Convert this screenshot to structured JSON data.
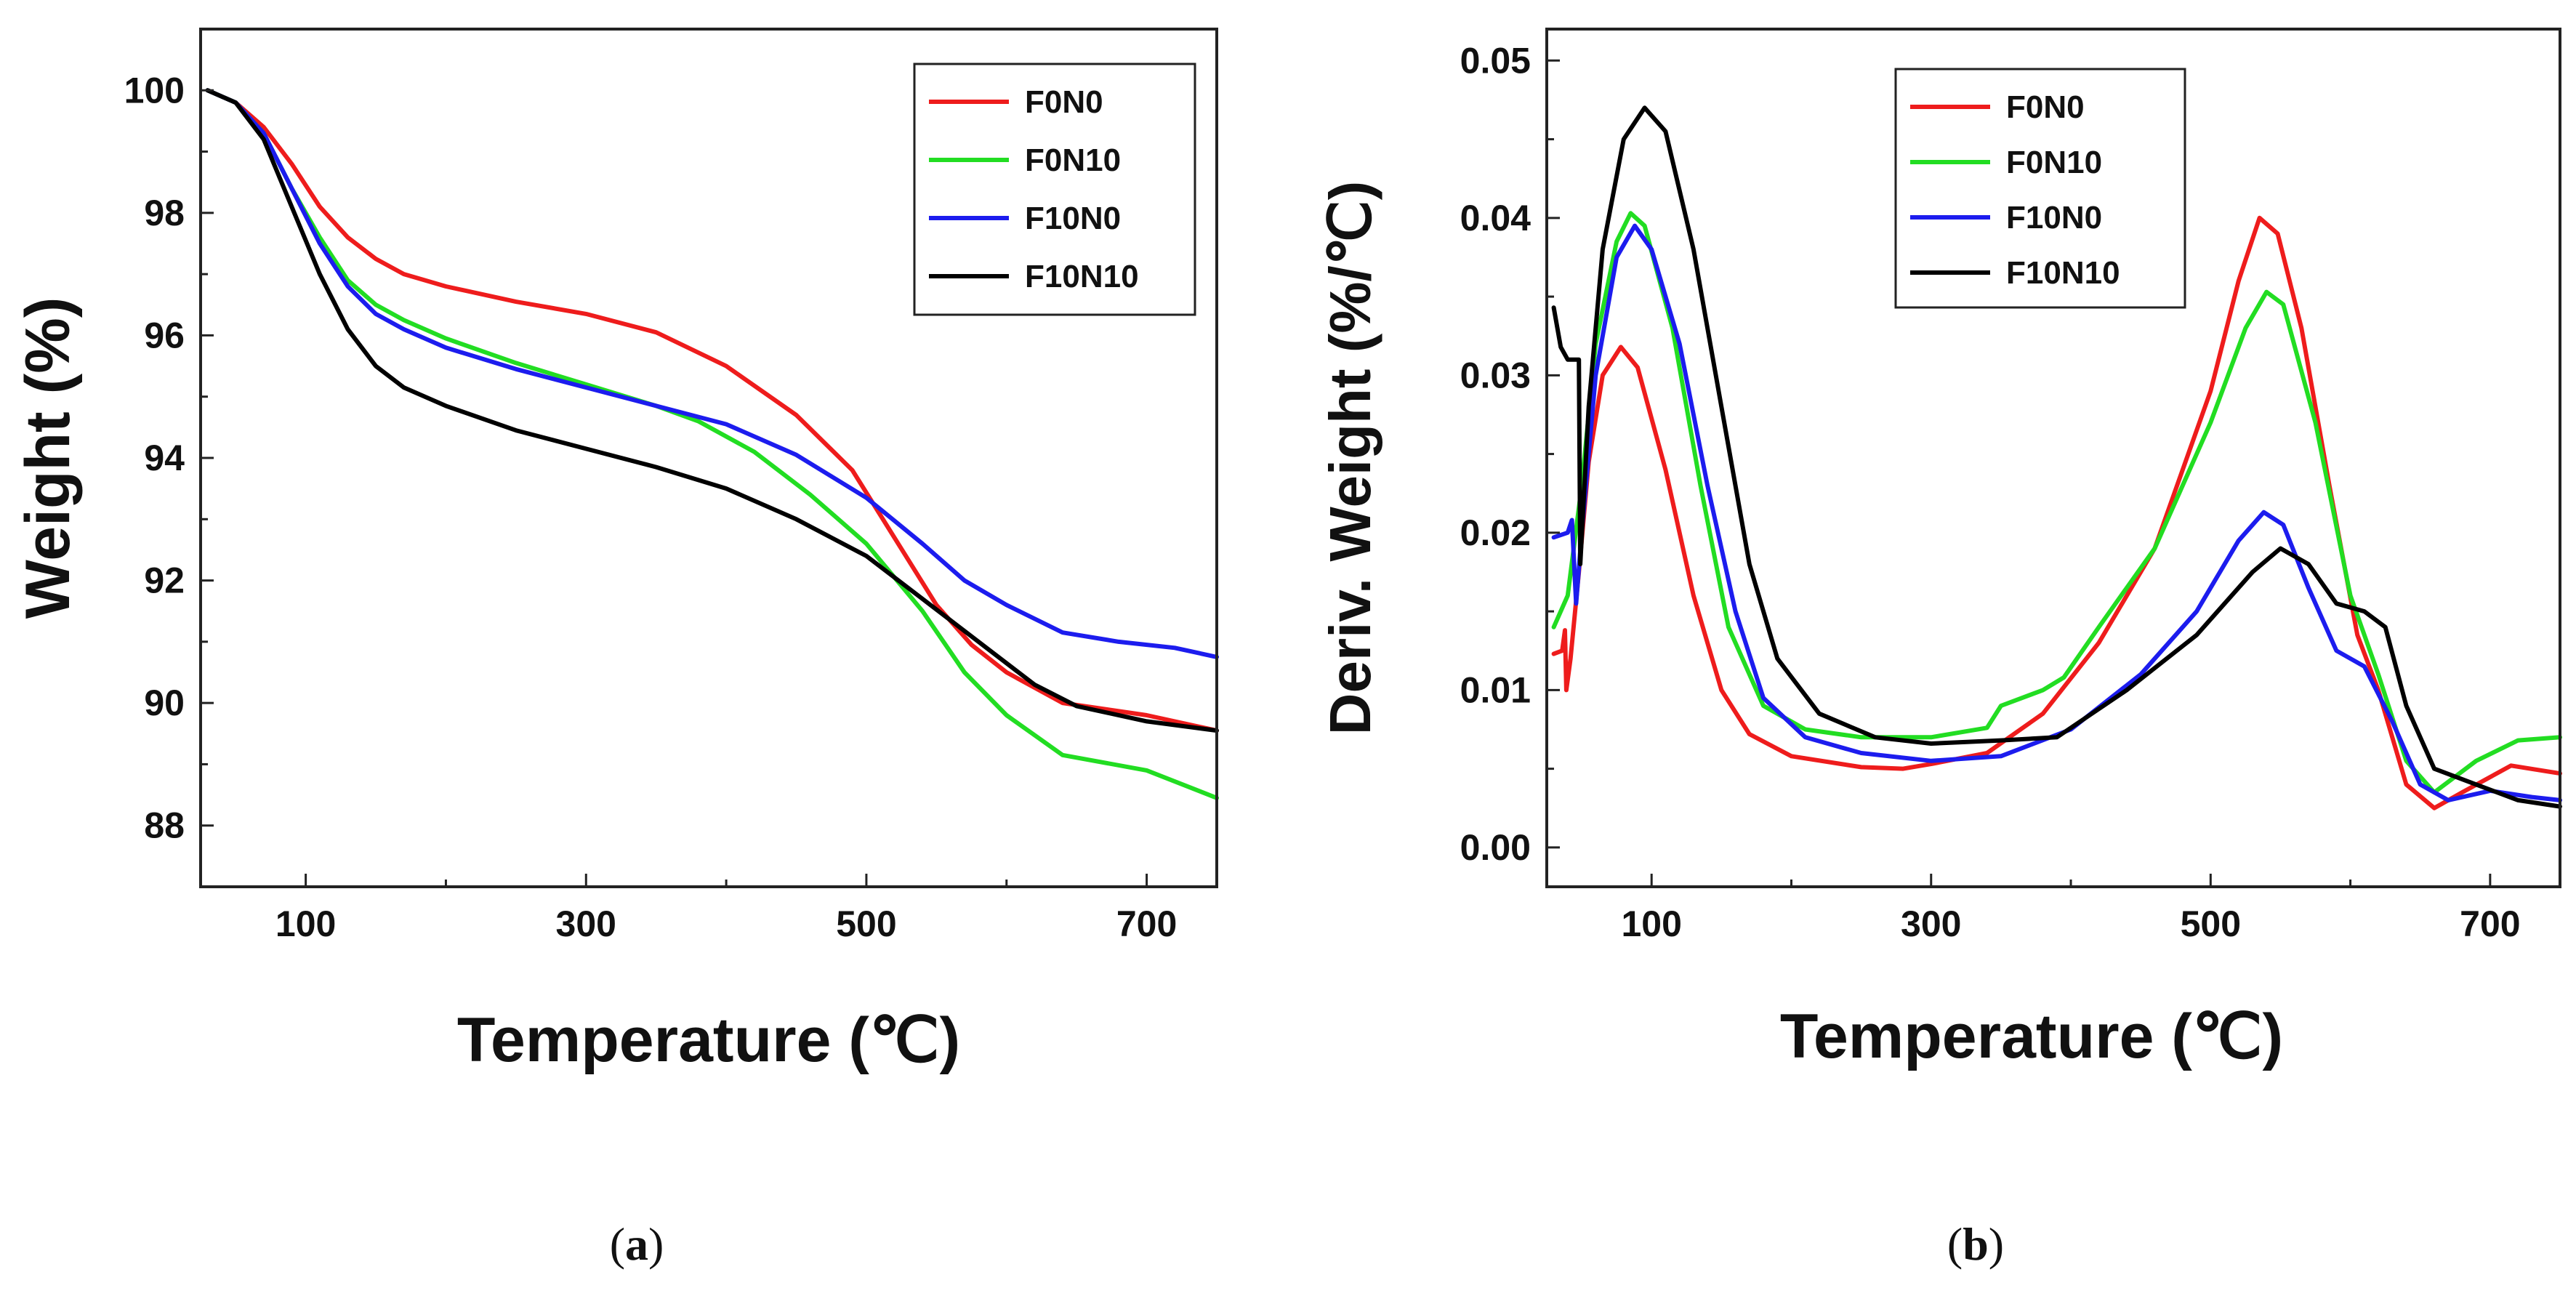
{
  "chart_data": [
    {
      "panel": "a",
      "panel_label": "a",
      "type": "line",
      "xlabel": "Temperature (℃)",
      "ylabel": "Weight (%)",
      "xlim": [
        25,
        750
      ],
      "ylim": [
        87,
        101
      ],
      "xticks": [
        100,
        300,
        500,
        700
      ],
      "yticks": [
        88,
        90,
        92,
        94,
        96,
        98,
        100
      ],
      "legend_position": "top-right",
      "series": [
        {
          "name": "F0N0",
          "color": "#ee1c1c",
          "points": [
            [
              30,
              100
            ],
            [
              50,
              99.8
            ],
            [
              70,
              99.4
            ],
            [
              90,
              98.8
            ],
            [
              110,
              98.1
            ],
            [
              130,
              97.6
            ],
            [
              150,
              97.25
            ],
            [
              170,
              97.0
            ],
            [
              200,
              96.8
            ],
            [
              250,
              96.55
            ],
            [
              300,
              96.35
            ],
            [
              350,
              96.05
            ],
            [
              400,
              95.5
            ],
            [
              450,
              94.7
            ],
            [
              490,
              93.8
            ],
            [
              520,
              92.7
            ],
            [
              550,
              91.6
            ],
            [
              575,
              90.95
            ],
            [
              600,
              90.5
            ],
            [
              640,
              90.0
            ],
            [
              700,
              89.8
            ],
            [
              750,
              89.55
            ]
          ]
        },
        {
          "name": "F0N10",
          "color": "#22dd22",
          "points": [
            [
              30,
              100
            ],
            [
              50,
              99.8
            ],
            [
              70,
              99.3
            ],
            [
              90,
              98.4
            ],
            [
              110,
              97.6
            ],
            [
              130,
              96.9
            ],
            [
              150,
              96.5
            ],
            [
              170,
              96.25
            ],
            [
              200,
              95.95
            ],
            [
              250,
              95.55
            ],
            [
              300,
              95.2
            ],
            [
              350,
              94.85
            ],
            [
              380,
              94.6
            ],
            [
              420,
              94.1
            ],
            [
              460,
              93.4
            ],
            [
              500,
              92.6
            ],
            [
              540,
              91.5
            ],
            [
              570,
              90.5
            ],
            [
              600,
              89.8
            ],
            [
              640,
              89.15
            ],
            [
              700,
              88.9
            ],
            [
              750,
              88.45
            ]
          ]
        },
        {
          "name": "F10N0",
          "color": "#1c1cee",
          "points": [
            [
              30,
              100
            ],
            [
              50,
              99.8
            ],
            [
              70,
              99.3
            ],
            [
              90,
              98.4
            ],
            [
              110,
              97.5
            ],
            [
              130,
              96.8
            ],
            [
              150,
              96.35
            ],
            [
              170,
              96.1
            ],
            [
              200,
              95.8
            ],
            [
              250,
              95.45
            ],
            [
              300,
              95.15
            ],
            [
              350,
              94.85
            ],
            [
              400,
              94.55
            ],
            [
              450,
              94.05
            ],
            [
              500,
              93.35
            ],
            [
              540,
              92.6
            ],
            [
              570,
              92.0
            ],
            [
              600,
              91.6
            ],
            [
              640,
              91.15
            ],
            [
              680,
              91.0
            ],
            [
              720,
              90.9
            ],
            [
              750,
              90.75
            ]
          ]
        },
        {
          "name": "F10N10",
          "color": "#000000",
          "points": [
            [
              30,
              100
            ],
            [
              50,
              99.8
            ],
            [
              70,
              99.2
            ],
            [
              90,
              98.1
            ],
            [
              110,
              97.0
            ],
            [
              130,
              96.1
            ],
            [
              150,
              95.5
            ],
            [
              170,
              95.15
            ],
            [
              200,
              94.85
            ],
            [
              250,
              94.45
            ],
            [
              300,
              94.15
            ],
            [
              350,
              93.85
            ],
            [
              400,
              93.5
            ],
            [
              450,
              93.0
            ],
            [
              500,
              92.4
            ],
            [
              540,
              91.7
            ],
            [
              580,
              91.0
            ],
            [
              620,
              90.3
            ],
            [
              650,
              89.95
            ],
            [
              700,
              89.7
            ],
            [
              750,
              89.55
            ]
          ]
        }
      ]
    },
    {
      "panel": "b",
      "panel_label": "b",
      "type": "line",
      "xlabel": "Temperature (℃)",
      "ylabel": "Deriv. Weight (%/℃)",
      "xlim": [
        25,
        750
      ],
      "ylim": [
        -0.0025,
        0.052
      ],
      "xticks": [
        100,
        300,
        500,
        700
      ],
      "yticks": [
        0.0,
        0.01,
        0.02,
        0.03,
        0.04,
        0.05
      ],
      "ytick_labels": [
        "0.00",
        "0.01",
        "0.02",
        "0.03",
        "0.04",
        "0.05"
      ],
      "legend_position": "top-center",
      "series": [
        {
          "name": "F0N0",
          "color": "#ee1c1c",
          "points": [
            [
              30,
              0.0123
            ],
            [
              36,
              0.0125
            ],
            [
              38,
              0.0138
            ],
            [
              39,
              0.01
            ],
            [
              42,
              0.012
            ],
            [
              48,
              0.0175
            ],
            [
              55,
              0.0245
            ],
            [
              65,
              0.03
            ],
            [
              78,
              0.0318
            ],
            [
              90,
              0.0305
            ],
            [
              110,
              0.024
            ],
            [
              130,
              0.016
            ],
            [
              150,
              0.01
            ],
            [
              170,
              0.0072
            ],
            [
              200,
              0.0058
            ],
            [
              250,
              0.0051
            ],
            [
              280,
              0.005
            ],
            [
              300,
              0.0053
            ],
            [
              340,
              0.006
            ],
            [
              380,
              0.0085
            ],
            [
              420,
              0.013
            ],
            [
              460,
              0.019
            ],
            [
              500,
              0.029
            ],
            [
              520,
              0.036
            ],
            [
              535,
              0.04
            ],
            [
              548,
              0.039
            ],
            [
              565,
              0.033
            ],
            [
              585,
              0.023
            ],
            [
              605,
              0.0135
            ],
            [
              620,
              0.01
            ],
            [
              640,
              0.004
            ],
            [
              660,
              0.0025
            ],
            [
              680,
              0.0035
            ],
            [
              715,
              0.0052
            ],
            [
              750,
              0.0047
            ]
          ]
        },
        {
          "name": "F0N10",
          "color": "#22dd22",
          "points": [
            [
              30,
              0.014
            ],
            [
              40,
              0.016
            ],
            [
              50,
              0.023
            ],
            [
              60,
              0.032
            ],
            [
              75,
              0.0385
            ],
            [
              85,
              0.0403
            ],
            [
              95,
              0.0395
            ],
            [
              115,
              0.033
            ],
            [
              135,
              0.023
            ],
            [
              155,
              0.014
            ],
            [
              180,
              0.009
            ],
            [
              210,
              0.0075
            ],
            [
              250,
              0.007
            ],
            [
              300,
              0.007
            ],
            [
              340,
              0.0076
            ],
            [
              350,
              0.009
            ],
            [
              380,
              0.01
            ],
            [
              395,
              0.0108
            ],
            [
              420,
              0.014
            ],
            [
              460,
              0.019
            ],
            [
              500,
              0.027
            ],
            [
              525,
              0.033
            ],
            [
              540,
              0.0353
            ],
            [
              552,
              0.0345
            ],
            [
              575,
              0.027
            ],
            [
              600,
              0.016
            ],
            [
              620,
              0.011
            ],
            [
              640,
              0.0055
            ],
            [
              660,
              0.0035
            ],
            [
              690,
              0.0055
            ],
            [
              720,
              0.0068
            ],
            [
              750,
              0.007
            ]
          ]
        },
        {
          "name": "F10N0",
          "color": "#1c1cee",
          "points": [
            [
              30,
              0.0197
            ],
            [
              40,
              0.02
            ],
            [
              43,
              0.0208
            ],
            [
              46,
              0.0155
            ],
            [
              50,
              0.02
            ],
            [
              60,
              0.03
            ],
            [
              75,
              0.0375
            ],
            [
              88,
              0.0395
            ],
            [
              100,
              0.038
            ],
            [
              120,
              0.032
            ],
            [
              140,
              0.023
            ],
            [
              160,
              0.015
            ],
            [
              180,
              0.0095
            ],
            [
              210,
              0.007
            ],
            [
              250,
              0.006
            ],
            [
              300,
              0.0055
            ],
            [
              350,
              0.0058
            ],
            [
              400,
              0.0075
            ],
            [
              450,
              0.011
            ],
            [
              490,
              0.015
            ],
            [
              520,
              0.0195
            ],
            [
              538,
              0.0213
            ],
            [
              552,
              0.0205
            ],
            [
              570,
              0.0165
            ],
            [
              590,
              0.0125
            ],
            [
              610,
              0.0115
            ],
            [
              630,
              0.008
            ],
            [
              650,
              0.004
            ],
            [
              670,
              0.003
            ],
            [
              700,
              0.0036
            ],
            [
              730,
              0.0032
            ],
            [
              750,
              0.003
            ]
          ]
        },
        {
          "name": "F10N10",
          "color": "#000000",
          "points": [
            [
              30,
              0.0343
            ],
            [
              35,
              0.0318
            ],
            [
              40,
              0.031
            ],
            [
              48,
              0.031
            ],
            [
              49,
              0.018
            ],
            [
              55,
              0.028
            ],
            [
              65,
              0.038
            ],
            [
              80,
              0.045
            ],
            [
              95,
              0.047
            ],
            [
              110,
              0.0455
            ],
            [
              130,
              0.038
            ],
            [
              150,
              0.028
            ],
            [
              170,
              0.018
            ],
            [
              190,
              0.012
            ],
            [
              220,
              0.0085
            ],
            [
              260,
              0.007
            ],
            [
              300,
              0.0066
            ],
            [
              350,
              0.0068
            ],
            [
              390,
              0.007
            ],
            [
              440,
              0.01
            ],
            [
              490,
              0.0135
            ],
            [
              530,
              0.0175
            ],
            [
              550,
              0.019
            ],
            [
              570,
              0.018
            ],
            [
              590,
              0.0155
            ],
            [
              610,
              0.015
            ],
            [
              625,
              0.014
            ],
            [
              640,
              0.009
            ],
            [
              660,
              0.005
            ],
            [
              690,
              0.004
            ],
            [
              720,
              0.003
            ],
            [
              750,
              0.0026
            ]
          ]
        }
      ]
    }
  ]
}
